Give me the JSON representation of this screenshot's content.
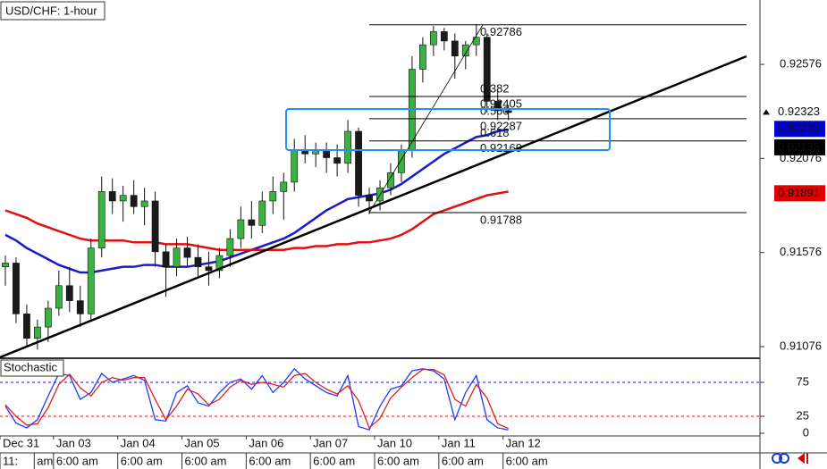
{
  "chart_data": {
    "type": "candlestick",
    "title": "USD/CHF: 1-hour",
    "ylim": [
      0.91019,
      0.92918
    ],
    "yticks": [
      0.92576,
      0.92076,
      0.91576,
      0.91076
    ],
    "xlim": [
      -0.5,
      70.5
    ],
    "date_ticks": [
      {
        "value": -0.5,
        "label": "Dec 31"
      },
      {
        "value": 4.5,
        "label": "Jan 03"
      },
      {
        "value": 10.5,
        "label": "Jan 04"
      },
      {
        "value": 16.5,
        "label": "Jan 05"
      },
      {
        "value": 22.5,
        "label": "Jan 06"
      },
      {
        "value": 28.5,
        "label": "Jan 07"
      },
      {
        "value": 34.5,
        "label": "Jan 10"
      },
      {
        "value": 40.5,
        "label": "Jan 11"
      },
      {
        "value": 46.5,
        "label": "Jan 12"
      }
    ],
    "time_ticks": [
      {
        "value": -0.5,
        "label": "11:"
      },
      {
        "value": 2.7,
        "label": "am"
      },
      {
        "value": 4.5,
        "label": "6:00 am"
      },
      {
        "value": 10.5,
        "label": "6:00 am"
      },
      {
        "value": 16.5,
        "label": "6:00 am"
      },
      {
        "value": 22.5,
        "label": "6:00 am"
      },
      {
        "value": 28.5,
        "label": "6:00 am"
      },
      {
        "value": 34.5,
        "label": "6:00 am"
      },
      {
        "value": 40.5,
        "label": "6:00 am"
      },
      {
        "value": 46.5,
        "label": "6:00 am"
      }
    ],
    "up_color": "#3cb043",
    "down_color": "#1a1a1a",
    "open": [
      0.915,
      0.9152,
      0.9125,
      0.9112,
      0.9118,
      0.9128,
      0.914,
      0.9132,
      0.9125,
      0.916,
      0.919,
      0.9185,
      0.9188,
      0.9182,
      0.9185,
      0.9158,
      0.915,
      0.916,
      0.9155,
      0.915,
      0.9148,
      0.9156,
      0.9165,
      0.9175,
      0.9172,
      0.9185,
      0.919,
      0.9195,
      0.9212,
      0.921,
      0.9212,
      0.9208,
      0.9205,
      0.9222,
      0.9188,
      0.9185,
      0.9192,
      0.92,
      0.9212,
      0.9255,
      0.9268,
      0.9275,
      0.927,
      0.9262,
      0.9268,
      0.9272,
      0.9238,
      0.9233
    ],
    "high": [
      0.9156,
      0.9155,
      0.913,
      0.9122,
      0.9132,
      0.9148,
      0.915,
      0.914,
      0.9165,
      0.9198,
      0.9197,
      0.9193,
      0.9196,
      0.9192,
      0.919,
      0.9162,
      0.9165,
      0.9166,
      0.9162,
      0.9158,
      0.916,
      0.917,
      0.9182,
      0.9185,
      0.919,
      0.9198,
      0.92,
      0.9218,
      0.922,
      0.9216,
      0.9216,
      0.9215,
      0.9228,
      0.9224,
      0.9192,
      0.9196,
      0.9205,
      0.9215,
      0.9262,
      0.9272,
      0.9278,
      0.9277,
      0.9274,
      0.927,
      0.9279,
      0.9274,
      0.9244,
      0.9236
    ],
    "low": [
      0.914,
      0.912,
      0.9108,
      0.9106,
      0.911,
      0.9124,
      0.9126,
      0.9118,
      0.9122,
      0.9155,
      0.9178,
      0.9174,
      0.9178,
      0.9172,
      0.915,
      0.9134,
      0.9145,
      0.915,
      0.9145,
      0.914,
      0.9144,
      0.915,
      0.916,
      0.9165,
      0.9168,
      0.9178,
      0.9175,
      0.919,
      0.9205,
      0.9203,
      0.92,
      0.9198,
      0.92,
      0.9182,
      0.9178,
      0.918,
      0.9188,
      0.9195,
      0.9208,
      0.9248,
      0.9262,
      0.9265,
      0.925,
      0.9255,
      0.9262,
      0.9232,
      0.9228,
      0.9228
    ],
    "close": [
      0.9152,
      0.9125,
      0.9112,
      0.9118,
      0.9128,
      0.914,
      0.9132,
      0.9125,
      0.916,
      0.919,
      0.9185,
      0.9188,
      0.9182,
      0.9185,
      0.9158,
      0.915,
      0.916,
      0.9155,
      0.915,
      0.9148,
      0.9156,
      0.9165,
      0.9175,
      0.9172,
      0.9185,
      0.919,
      0.9195,
      0.9212,
      0.921,
      0.9212,
      0.9208,
      0.9205,
      0.9222,
      0.9188,
      0.9185,
      0.9192,
      0.92,
      0.9212,
      0.9255,
      0.9268,
      0.9275,
      0.927,
      0.9262,
      0.9268,
      0.9272,
      0.9238,
      0.9233,
      0.9232
    ],
    "series": [
      {
        "color": "#1a1acc",
        "values": [
          0.9167,
          0.9164,
          0.916,
          0.9157,
          0.9154,
          0.9151,
          0.9149,
          0.9147,
          0.9147,
          0.9148,
          0.9149,
          0.915,
          0.915,
          0.9151,
          0.9151,
          0.915,
          0.915,
          0.915,
          0.9151,
          0.9152,
          0.9153,
          0.9155,
          0.9157,
          0.9159,
          0.9161,
          0.9163,
          0.9165,
          0.9168,
          0.9172,
          0.9176,
          0.918,
          0.9183,
          0.9186,
          0.9187,
          0.9188,
          0.9189,
          0.9191,
          0.9194,
          0.9198,
          0.9202,
          0.9206,
          0.921,
          0.9213,
          0.9216,
          0.9219,
          0.922,
          0.9222,
          0.9223
        ]
      },
      {
        "color": "#e01010",
        "values": [
          0.918,
          0.9178,
          0.9176,
          0.9173,
          0.9171,
          0.9169,
          0.9167,
          0.9165,
          0.9164,
          0.9164,
          0.9164,
          0.9164,
          0.9163,
          0.9163,
          0.9163,
          0.9162,
          0.9162,
          0.9162,
          0.9161,
          0.916,
          0.9159,
          0.9159,
          0.9159,
          0.9159,
          0.9159,
          0.9159,
          0.9159,
          0.916,
          0.916,
          0.9161,
          0.9161,
          0.9162,
          0.9162,
          0.9163,
          0.9163,
          0.9164,
          0.9165,
          0.9167,
          0.917,
          0.9174,
          0.9178,
          0.918,
          0.9182,
          0.9184,
          0.9186,
          0.9188,
          0.9189,
          0.919
        ]
      }
    ],
    "fib": {
      "high": 0.92786,
      "low": 0.91788,
      "levels": [
        {
          "ratio": 0.382,
          "price": 0.92405
        },
        {
          "ratio": {
            "value": 0.5,
            "label": "0.500"
          },
          "price": 0.92287
        },
        {
          "ratio": 0.618,
          "price": 0.92169
        }
      ]
    },
    "price_labels": [
      {
        "value": 0.92323,
        "color": "#ffffff",
        "text_color": "#000000"
      },
      {
        "value": 0.92233,
        "color": "#0000d0",
        "text_color": "#ffffff"
      },
      {
        "value": 0.92135,
        "color": "#000000",
        "text_color": "#ffffff"
      },
      {
        "value": 0.91891,
        "color": "#e00000",
        "text_color": "#ffffff"
      }
    ],
    "stochastic": {
      "title": "Stochastic",
      "ylim": [
        -3.9,
        107.9
      ],
      "yticks": [
        75,
        25,
        0
      ],
      "levels": [
        {
          "value": 75,
          "color": "#1a1acc"
        },
        {
          "value": 25,
          "color": "#e01010"
        }
      ],
      "series": [
        {
          "color": "#1a3cff",
          "values": [
            40,
            15,
            8,
            20,
            55,
            88,
            85,
            50,
            60,
            88,
            75,
            80,
            85,
            78,
            20,
            18,
            60,
            70,
            45,
            40,
            60,
            75,
            80,
            65,
            85,
            60,
            75,
            95,
            80,
            70,
            60,
            55,
            85,
            10,
            5,
            40,
            65,
            70,
            92,
            95,
            92,
            80,
            20,
            60,
            85,
            20,
            8,
            5
          ]
        },
        {
          "color": "#e02020",
          "values": [
            42,
            25,
            12,
            14,
            38,
            72,
            87,
            67,
            55,
            75,
            82,
            78,
            82,
            82,
            50,
            20,
            40,
            65,
            58,
            42,
            50,
            68,
            78,
            72,
            75,
            72,
            68,
            85,
            88,
            75,
            65,
            58,
            70,
            48,
            8,
            22,
            52,
            68,
            82,
            94,
            94,
            86,
            50,
            40,
            72,
            52,
            14,
            7
          ]
        }
      ]
    }
  }
}
